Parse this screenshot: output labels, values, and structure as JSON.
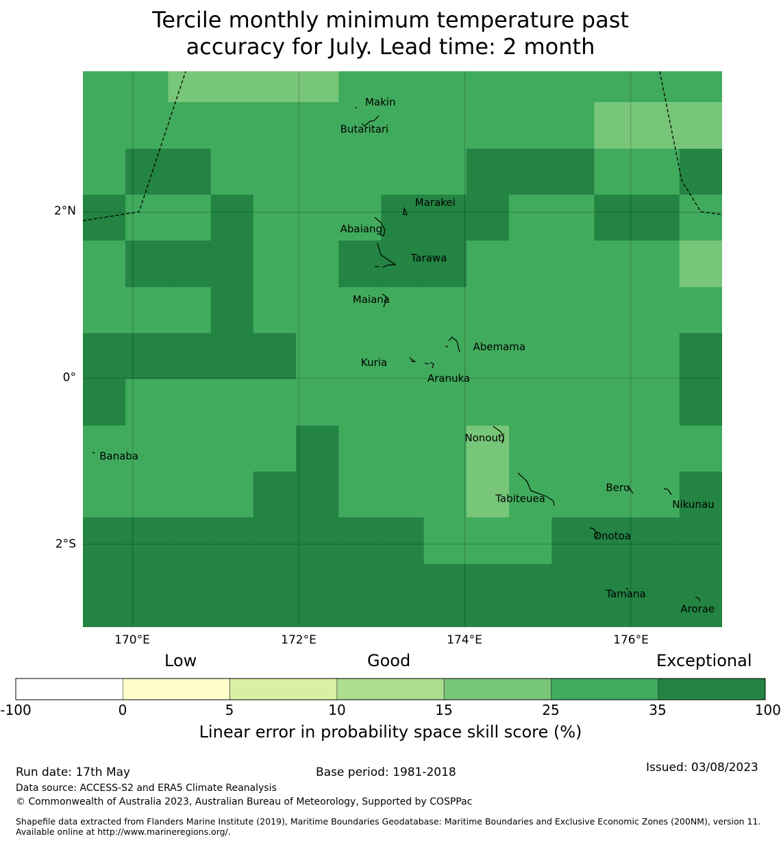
{
  "title_line1": "Tercile monthly minimum temperature past",
  "title_line2": "accuracy for July. Lead time: 2 month",
  "map": {
    "lat_ticks": [
      "2°N",
      "0°",
      "2°S"
    ],
    "lon_ticks": [
      "170°E",
      "172°E",
      "174°E",
      "176°E"
    ],
    "lon_range": [
      169.4,
      177.1
    ],
    "lat_range": [
      -3.0,
      3.7
    ],
    "colors": {
      "c15_25": "#78c679",
      "c25_35": "#41ab5d",
      "c35_100": "#238443"
    },
    "grid_origin_lon": 169.4,
    "grid_step_deg": 0.5625,
    "grid_rows_top_lat": 3.7,
    "grid_rows": [
      "BBAAAABBBBBBBBB",
      "BBBBBBBBBBBBAAA",
      "BCCBBBBBBCCCBBC",
      "CBBCBBBCCCBBCCB",
      "BCCCBBCCCBBBBBA",
      "BBBCBBBBBBBBBBB",
      "CCCCCBBBBBBBBBC",
      "CBBBBBBBBBBBBBC",
      "BBBBBCBBBABBBBB",
      "BBBBCCBBBABBBBC",
      "CCCCCCCCBBBCCCC",
      "CCCCCCCCCCCCCCC",
      "CCCCCCCCCCCCCCC"
    ],
    "places": [
      {
        "name": "Makin",
        "lon": 172.8,
        "lat": 3.33
      },
      {
        "name": "Butaritari",
        "lon": 172.5,
        "lat": 3.0
      },
      {
        "name": "Marakei",
        "lon": 173.4,
        "lat": 2.12
      },
      {
        "name": "Abaiang",
        "lon": 172.5,
        "lat": 1.8
      },
      {
        "name": "Tarawa",
        "lon": 173.35,
        "lat": 1.45
      },
      {
        "name": "Maiana",
        "lon": 172.65,
        "lat": 0.95
      },
      {
        "name": "Abemama",
        "lon": 174.1,
        "lat": 0.38
      },
      {
        "name": "Kuria",
        "lon": 172.75,
        "lat": 0.19
      },
      {
        "name": "Aranuka",
        "lon": 173.55,
        "lat": 0.0
      },
      {
        "name": "Banaba",
        "lon": 169.6,
        "lat": -0.94
      },
      {
        "name": "Nonouti",
        "lon": 174.0,
        "lat": -0.72
      },
      {
        "name": "Tabiteuea",
        "lon": 174.37,
        "lat": -1.45
      },
      {
        "name": "Beru",
        "lon": 175.7,
        "lat": -1.32
      },
      {
        "name": "Nikunau",
        "lon": 176.5,
        "lat": -1.52
      },
      {
        "name": "Onotoa",
        "lon": 175.55,
        "lat": -1.9
      },
      {
        "name": "Tamana",
        "lon": 175.7,
        "lat": -2.6
      },
      {
        "name": "Arorae",
        "lon": 176.6,
        "lat": -2.78
      }
    ]
  },
  "colorbar": {
    "categories": [
      "Low",
      "Good",
      "Exceptional"
    ],
    "ticks": [
      "-100",
      "0",
      "5",
      "10",
      "15",
      "25",
      "35",
      "100"
    ],
    "colors": [
      "#ffffff",
      "#ffffcc",
      "#d9f0a3",
      "#addd8e",
      "#78c679",
      "#41ab5d",
      "#238443"
    ],
    "title": "Linear error in probability space skill score (%)"
  },
  "footer": {
    "run_date": "Run date: 17th May",
    "base_period": "Base period: 1981-2018",
    "issued": "Issued: 03/08/2023",
    "data_source": "Data source: ACCESS-S2 and ERA5 Climate Reanalysis",
    "copyright": "© Commonwealth of Australia 2023, Australian Bureau of Meteorology, Supported by COSPPac",
    "shapefile": "Shapefile data extracted from Flanders Marine Institute (2019), Maritime Boundaries Geodatabase: Maritime Boundaries and Exclusive Economic Zones (200NM), version 11. Available online at http://www.marineregions.org/."
  }
}
